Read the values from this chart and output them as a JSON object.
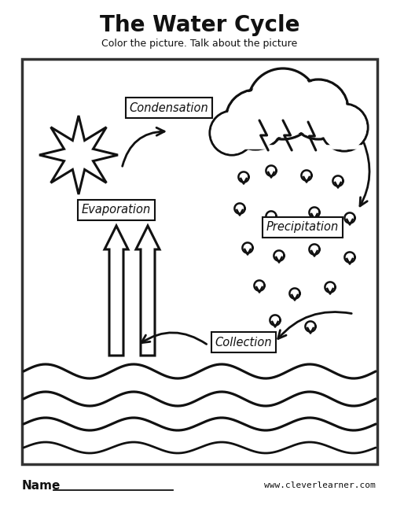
{
  "title": "The Water Cycle",
  "subtitle": "Color the picture. Talk about the picture",
  "footer_left": "Name",
  "footer_right": "www.cleverlearner.com",
  "bg_color": "#ffffff",
  "border_color": "#333333",
  "text_color": "#111111",
  "labels": {
    "condensation": "Condensation",
    "evaporation": "Evaporation",
    "precipitation": "Precipitation",
    "collection": "Collection"
  },
  "figsize": [
    5.0,
    6.47
  ],
  "dpi": 100
}
